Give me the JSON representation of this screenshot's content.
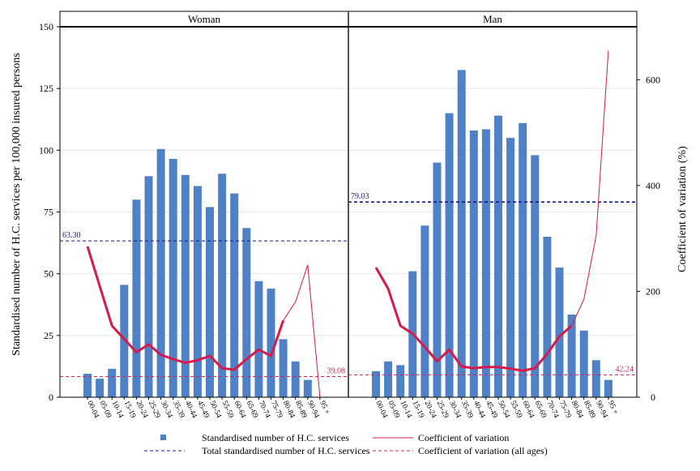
{
  "chart_data": {
    "type": "bar",
    "panels": [
      "Woman",
      "Man"
    ],
    "categories": [
      "00-04",
      "05-09",
      "10-14",
      "15-19",
      "20-24",
      "25-29",
      "30-34",
      "35-39",
      "40-44",
      "45-49",
      "50-54",
      "55-59",
      "60-64",
      "65-69",
      "70-74",
      "75-79",
      "80-84",
      "85-89",
      "90-94",
      "95 +"
    ],
    "ylabel_left": "Standardised number of H.C. services per 100,000 insured persons",
    "ylabel_right": "Coefficient of variation (%)",
    "ylim_left": [
      0,
      150
    ],
    "ylim_right": [
      0,
      700
    ],
    "yticks_left": [
      "0",
      "25",
      "50",
      "75",
      "100",
      "125",
      "150"
    ],
    "yticks_right": [
      "0",
      "200",
      "400",
      "600"
    ],
    "series": {
      "Woman": {
        "bars": [
          9.5,
          7.5,
          11.5,
          45.5,
          80,
          89.5,
          100.5,
          96.5,
          90,
          85.5,
          77,
          90.5,
          82.5,
          68.5,
          47,
          44,
          23.5,
          14.5,
          7,
          0
        ],
        "cv": [
          285,
          210,
          135,
          110,
          85,
          100,
          80,
          72,
          65,
          70,
          78,
          55,
          52,
          72,
          90,
          78,
          145,
          180,
          250,
          0
        ],
        "total": 63.3,
        "cv_all": 39.08
      },
      "Man": {
        "bars": [
          10.5,
          14.5,
          13,
          51,
          69.5,
          95,
          115,
          132.5,
          108,
          108.5,
          114,
          105,
          111,
          98,
          65,
          52.5,
          33.5,
          27,
          15,
          7
        ],
        "cv": [
          245,
          205,
          135,
          120,
          95,
          68,
          90,
          58,
          55,
          57,
          57,
          54,
          50,
          55,
          82,
          115,
          135,
          185,
          305,
          655
        ],
        "total": 79.03,
        "cv_all": 42.24
      }
    },
    "ref_labels": {
      "Woman": "63.30",
      "Man": "79.03",
      "Woman_cv": "39.08",
      "Man_cv": "42.24"
    },
    "legend": {
      "bars": "Standardised number of H.C. services",
      "total": "Total standardised number of H.C. services",
      "cv": "Coefficient of variation",
      "cv_all": "Coefficient of variation (all ages)"
    },
    "colors": {
      "bar": "#4f81c7",
      "cv": "#d61a4a",
      "total_line": "#1a1a8c",
      "cv_all_line": "#c8285a",
      "grid": "#e6e6e6"
    }
  }
}
